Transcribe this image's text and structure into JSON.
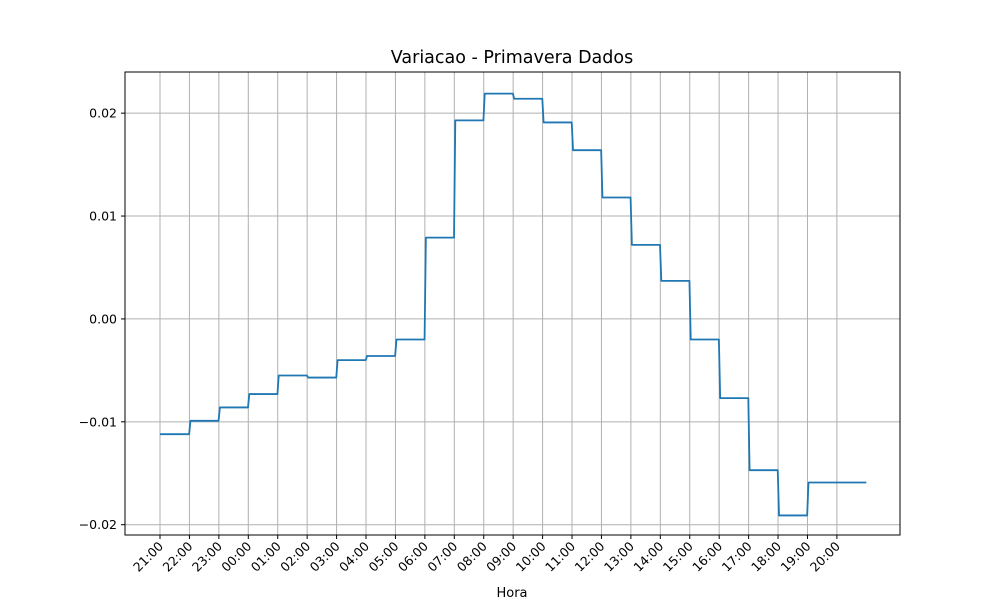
{
  "chart_data": {
    "type": "line",
    "title": "Variacao - Primavera Dados",
    "xlabel": "Hora",
    "ylabel": "",
    "ylim": [
      -0.021,
      0.024
    ],
    "yticks": [
      "−0.02",
      "−0.01",
      "0.00",
      "0.01",
      "0.02"
    ],
    "ytick_values": [
      -0.02,
      -0.01,
      0.0,
      0.01,
      0.02
    ],
    "xticks": [
      "21:00",
      "22:00",
      "23:00",
      "00:00",
      "01:00",
      "02:00",
      "03:00",
      "04:00",
      "05:00",
      "06:00",
      "07:00",
      "08:00",
      "09:00",
      "10:00",
      "11:00",
      "12:00",
      "13:00",
      "14:00",
      "15:00",
      "16:00",
      "17:00",
      "18:00",
      "19:00",
      "20:00"
    ],
    "grid": true,
    "line_color": "#1f77b4",
    "series": [
      {
        "x": [
          "21:00",
          "22:00",
          "23:00",
          "00:00",
          "01:00",
          "02:00",
          "03:00",
          "04:00",
          "05:00",
          "06:00",
          "07:00",
          "08:00",
          "09:00",
          "10:00",
          "11:00",
          "12:00",
          "13:00",
          "14:00",
          "15:00",
          "16:00",
          "17:00",
          "18:00",
          "19:00",
          "20:00"
        ],
        "values": [
          -0.0112,
          -0.0099,
          -0.0086,
          -0.0073,
          -0.0055,
          -0.0057,
          -0.004,
          -0.0036,
          -0.002,
          0.0079,
          0.0193,
          0.0219,
          0.0214,
          0.0191,
          0.0164,
          0.0118,
          0.0072,
          0.0037,
          -0.002,
          -0.0077,
          -0.0147,
          -0.0191,
          -0.0159,
          -0.0159
        ]
      }
    ]
  }
}
